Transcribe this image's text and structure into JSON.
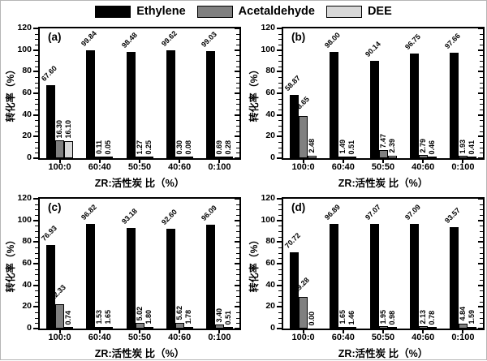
{
  "legend": {
    "items": [
      {
        "label": "Ethylene",
        "color": "#000000"
      },
      {
        "label": "Acetaldehyde",
        "color": "#808080"
      },
      {
        "label": "DEE",
        "color": "#d8d8d8"
      }
    ]
  },
  "axes": {
    "ylabel": "转化率（%）",
    "xlabel": "ZR:活性炭 比（%）",
    "yticks": [
      0,
      20,
      40,
      60,
      80,
      100,
      120
    ],
    "minor_tick_step": 5
  },
  "chart_data": [
    {
      "type": "bar",
      "panel": "(a)",
      "categories": [
        "100:0",
        "60:40",
        "50:50",
        "40:60",
        "0:100"
      ],
      "series": [
        {
          "name": "Ethylene",
          "color": "#000000",
          "values": [
            67.6,
            99.84,
            98.48,
            99.62,
            99.03
          ]
        },
        {
          "name": "Acetaldehyde",
          "color": "#808080",
          "values": [
            16.3,
            0.11,
            1.27,
            0.3,
            0.69
          ]
        },
        {
          "name": "DEE",
          "color": "#d8d8d8",
          "values": [
            16.1,
            0.05,
            0.25,
            0.08,
            0.28
          ]
        }
      ],
      "xlabel": "ZR:活性炭 比（%）",
      "ylabel": "转化率（%）",
      "ylim": [
        0,
        120
      ],
      "grid": false,
      "legend_position": "top"
    },
    {
      "type": "bar",
      "panel": "(b)",
      "categories": [
        "100:0",
        "60:40",
        "50:50",
        "40:60",
        "0:100"
      ],
      "series": [
        {
          "name": "Ethylene",
          "color": "#000000",
          "values": [
            58.87,
            98.0,
            90.14,
            96.75,
            97.66
          ]
        },
        {
          "name": "Acetaldehyde",
          "color": "#808080",
          "values": [
            38.65,
            1.49,
            7.47,
            2.79,
            1.93
          ]
        },
        {
          "name": "DEE",
          "color": "#d8d8d8",
          "values": [
            2.48,
            0.51,
            2.39,
            0.46,
            0.41
          ]
        }
      ],
      "xlabel": "ZR:活性炭 比（%）",
      "ylabel": "转化率（%）",
      "ylim": [
        0,
        120
      ],
      "grid": false,
      "legend_position": "top"
    },
    {
      "type": "bar",
      "panel": "(c)",
      "categories": [
        "100:0",
        "60:40",
        "50:50",
        "40:60",
        "0:100"
      ],
      "series": [
        {
          "name": "Ethylene",
          "color": "#000000",
          "values": [
            76.93,
            96.82,
            93.18,
            92.6,
            96.09
          ]
        },
        {
          "name": "Acetaldehyde",
          "color": "#808080",
          "values": [
            22.33,
            1.53,
            5.02,
            5.62,
            3.4
          ]
        },
        {
          "name": "DEE",
          "color": "#d8d8d8",
          "values": [
            0.74,
            1.65,
            1.8,
            1.78,
            0.51
          ]
        }
      ],
      "xlabel": "ZR:活性炭 比（%）",
      "ylabel": "转化率（%）",
      "ylim": [
        0,
        120
      ],
      "grid": false,
      "legend_position": "top"
    },
    {
      "type": "bar",
      "panel": "(d)",
      "categories": [
        "100:0",
        "60:40",
        "50:50",
        "40:60",
        "0:100"
      ],
      "series": [
        {
          "name": "Ethylene",
          "color": "#000000",
          "values": [
            70.72,
            96.89,
            97.07,
            97.09,
            93.57
          ]
        },
        {
          "name": "Acetaldehyde",
          "color": "#808080",
          "values": [
            29.28,
            1.65,
            1.95,
            2.13,
            4.84
          ]
        },
        {
          "name": "DEE",
          "color": "#d8d8d8",
          "values": [
            0.0,
            1.46,
            0.98,
            0.78,
            1.59
          ]
        }
      ],
      "xlabel": "ZR:活性炭 比（%）",
      "ylabel": "转化率（%）",
      "ylim": [
        0,
        120
      ],
      "grid": false,
      "legend_position": "top"
    }
  ]
}
